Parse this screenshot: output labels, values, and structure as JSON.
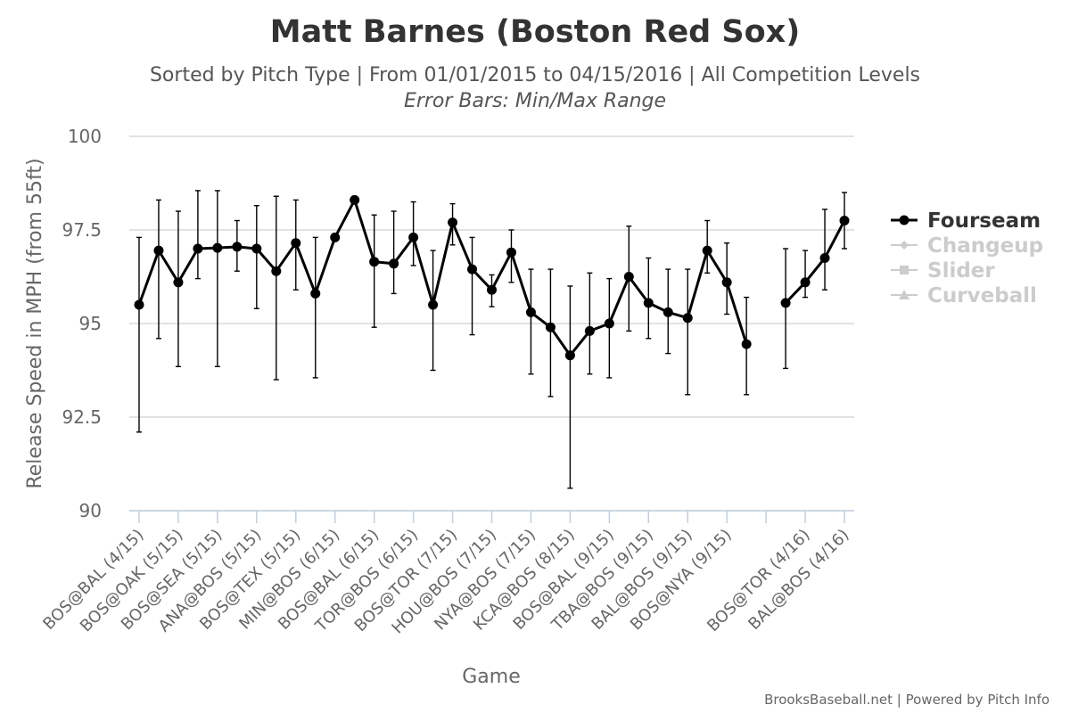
{
  "chart_data": {
    "type": "line",
    "title": "Matt Barnes (Boston Red Sox)",
    "subtitle": "Sorted by Pitch Type | From 01/01/2015 to 04/15/2016 | All Competition Levels",
    "subtitle2": "Error Bars: Min/Max Range",
    "xlabel": "Game",
    "ylabel": "Release Speed in MPH (from 55ft)",
    "ylim": [
      90,
      100
    ],
    "yticks": [
      "90",
      "92.5",
      "95",
      "97.5",
      "100"
    ],
    "grid": true,
    "legend_position": "right",
    "xtick_labels": [
      "BOS@BAL (4/15)",
      "BOS@OAK (5/15)",
      "BOS@SEA (5/15)",
      "ANA@BOS (5/15)",
      "BOS@TEX (5/15)",
      "MIN@BOS (6/15)",
      "BOS@BAL (6/15)",
      "TOR@BOS (6/15)",
      "BOS@TOR (7/15)",
      "HOU@BOS (7/15)",
      "NYA@BOS (7/15)",
      "KCA@BOS (8/15)",
      "BOS@BAL (9/15)",
      "TBA@BOS (9/15)",
      "BAL@BOS (9/15)",
      "BOS@NYA (9/15)",
      "",
      "BOS@TOR (4/16)",
      "BAL@BOS (4/16)"
    ],
    "legend": [
      {
        "name": "Fourseam",
        "active": true,
        "color": "#000000"
      },
      {
        "name": "Changeup",
        "active": false,
        "color": "#cccccc"
      },
      {
        "name": "Slider",
        "active": false,
        "color": "#cccccc"
      },
      {
        "name": "Curveball",
        "active": false,
        "color": "#cccccc"
      }
    ],
    "series": [
      {
        "name": "Fourseam",
        "points": [
          {
            "x": 0,
            "y": 95.5,
            "min": 92.1,
            "max": 97.3
          },
          {
            "x": 1,
            "y": 96.95,
            "min": 94.6,
            "max": 98.3
          },
          {
            "x": 2,
            "y": 96.1,
            "min": 93.85,
            "max": 98.0
          },
          {
            "x": 3,
            "y": 97.0,
            "min": 96.2,
            "max": 98.55
          },
          {
            "x": 4,
            "y": 97.02,
            "min": 93.85,
            "max": 98.55
          },
          {
            "x": 5,
            "y": 97.05,
            "min": 96.4,
            "max": 97.75
          },
          {
            "x": 6,
            "y": 97.0,
            "min": 95.4,
            "max": 98.15
          },
          {
            "x": 7,
            "y": 96.4,
            "min": 93.5,
            "max": 98.4
          },
          {
            "x": 8,
            "y": 97.15,
            "min": 95.9,
            "max": 98.3
          },
          {
            "x": 9,
            "y": 95.8,
            "min": 93.55,
            "max": 97.3
          },
          {
            "x": 10,
            "y": 97.3,
            "min": null,
            "max": null
          },
          {
            "x": 11,
            "y": 98.3,
            "min": null,
            "max": null
          },
          {
            "x": 12,
            "y": 96.65,
            "min": 94.9,
            "max": 97.9
          },
          {
            "x": 13,
            "y": 96.6,
            "min": 95.8,
            "max": 98.0
          },
          {
            "x": 14,
            "y": 97.3,
            "min": 96.55,
            "max": 98.25
          },
          {
            "x": 15,
            "y": 95.5,
            "min": 93.75,
            "max": 96.95
          },
          {
            "x": 16,
            "y": 97.7,
            "min": 97.1,
            "max": 98.2
          },
          {
            "x": 17,
            "y": 96.45,
            "min": 94.7,
            "max": 97.3
          },
          {
            "x": 18,
            "y": 95.9,
            "min": 95.45,
            "max": 96.3
          },
          {
            "x": 19,
            "y": 96.9,
            "min": 96.1,
            "max": 97.5
          },
          {
            "x": 20,
            "y": 95.3,
            "min": 93.65,
            "max": 96.45
          },
          {
            "x": 21,
            "y": 94.9,
            "min": 93.05,
            "max": 96.45
          },
          {
            "x": 22,
            "y": 94.15,
            "min": 90.6,
            "max": 96.0
          },
          {
            "x": 23,
            "y": 94.8,
            "min": 93.65,
            "max": 96.35
          },
          {
            "x": 24,
            "y": 95.0,
            "min": 93.55,
            "max": 96.2
          },
          {
            "x": 25,
            "y": 96.25,
            "min": 94.8,
            "max": 97.6
          },
          {
            "x": 26,
            "y": 95.55,
            "min": 94.6,
            "max": 96.75
          },
          {
            "x": 27,
            "y": 95.3,
            "min": 94.2,
            "max": 96.45
          },
          {
            "x": 28,
            "y": 95.15,
            "min": 93.1,
            "max": 96.45
          },
          {
            "x": 29,
            "y": 96.95,
            "min": 96.35,
            "max": 97.75
          },
          {
            "x": 30,
            "y": 96.1,
            "min": 95.25,
            "max": 97.15
          },
          {
            "x": 31,
            "y": 94.45,
            "min": 93.1,
            "max": 95.7
          },
          {
            "x": 32,
            "y": null,
            "min": null,
            "max": null
          },
          {
            "x": 33,
            "y": 95.55,
            "min": 93.8,
            "max": 97.0
          },
          {
            "x": 34,
            "y": 96.1,
            "min": 95.7,
            "max": 96.95
          },
          {
            "x": 35,
            "y": 96.75,
            "min": 95.9,
            "max": 98.05
          },
          {
            "x": 36,
            "y": 97.75,
            "min": 97.0,
            "max": 98.5
          }
        ]
      }
    ]
  },
  "credit": "BrooksBaseball.net | Powered by Pitch Info"
}
